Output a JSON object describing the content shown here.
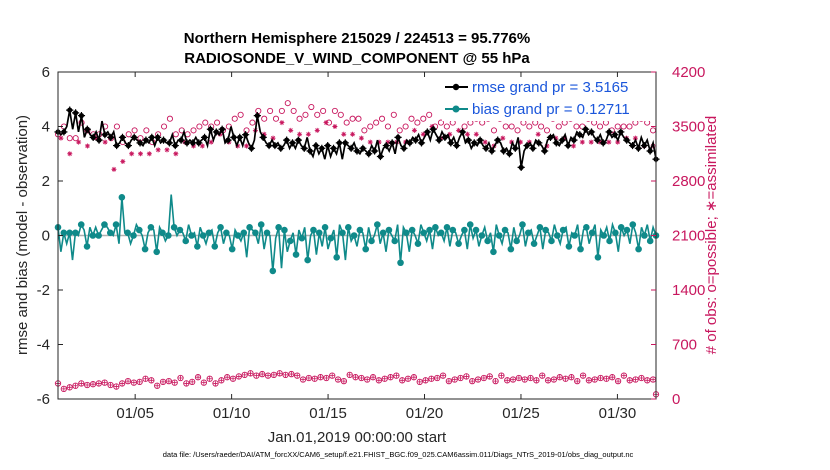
{
  "chart_data": {
    "type": "line",
    "title": "Northern Hemisphere 215029 / 224513 = 95.776%",
    "subtitle": "RADIOSONDE_V_WIND_COMPONENT @ 55 hPa",
    "xlabel": "Jan.01,2019 00:00:00 start",
    "ylabel": "rmse and bias (model - observation)",
    "ylabel_right": "# of obs: o=possible; ∗=assimilated",
    "footnote": "data file: /Users/raeder/DAI/ATM_forcXX/CAM6_setup/f.e21.FHIST_BGC.f09_025.CAM6assim.011/Diags_NTrS_2019-01/obs_diag_output.nc",
    "xlim": [
      1,
      32
    ],
    "ylim": [
      -6,
      6
    ],
    "ylim_right": [
      0,
      4200
    ],
    "x_ticks": [
      5,
      10,
      15,
      20,
      25,
      30
    ],
    "x_tick_labels": [
      "01/05",
      "01/10",
      "01/15",
      "01/20",
      "01/25",
      "01/30"
    ],
    "y_ticks": [
      -6,
      -4,
      -2,
      0,
      2,
      4,
      6
    ],
    "y_tick_labels": [
      "-6",
      "-4",
      "-2",
      "0",
      "2",
      "4",
      "6"
    ],
    "y_ticks_right": [
      0,
      700,
      1400,
      2100,
      2800,
      3500,
      4200
    ],
    "y_tick_labels_right": [
      "0",
      "700",
      "1400",
      "2100",
      "2800",
      "3500",
      "4200"
    ],
    "colors": {
      "rmse": "#000000",
      "bias": "#0f8a8a",
      "obs": "#c8175e",
      "legend_text": "#1a56db",
      "zero_line": "#b0b0b0"
    },
    "legend": [
      {
        "name": "rmse",
        "label": "rmse grand pr = 3.5165"
      },
      {
        "name": "bias",
        "label": "bias grand pr = 0.12711"
      }
    ],
    "series": [
      {
        "name": "rmse",
        "axis": "left",
        "values": [
          3.8,
          3.7,
          3.8,
          4.0,
          4.6,
          3.9,
          4.5,
          3.8,
          4.4,
          3.6,
          3.9,
          3.7,
          3.6,
          3.8,
          3.5,
          4.2,
          3.7,
          3.8,
          3.6,
          3.8,
          3.3,
          3.4,
          3.6,
          3.4,
          3.3,
          3.5,
          3.6,
          3.5,
          3.4,
          3.3,
          3.5,
          3.4,
          3.6,
          3.3,
          3.6,
          3.4,
          3.5,
          3.4,
          3.4,
          3.7,
          3.3,
          3.5,
          3.5,
          3.8,
          3.4,
          3.5,
          3.4,
          3.6,
          3.4,
          3.5,
          3.6,
          3.3,
          3.9,
          3.5,
          3.8,
          3.7,
          3.9,
          3.4,
          3.5,
          4.0,
          3.6,
          3.3,
          3.6,
          3.3,
          3.7,
          3.4,
          3.2,
          3.5,
          4.4,
          3.8,
          3.6,
          3.4,
          3.3,
          3.5,
          3.3,
          3.4,
          3.2,
          3.3,
          3.5,
          3.2,
          3.4,
          3.2,
          3.5,
          3.3,
          3.2,
          3.6,
          3.1,
          2.9,
          3.3,
          3.0,
          3.2,
          2.8,
          3.3,
          2.9,
          3.2,
          3.0,
          3.4,
          2.8,
          3.4,
          3.3,
          3.2,
          3.4,
          3.1,
          3.0,
          3.2,
          3.1,
          3.0,
          3.3,
          3.1,
          3.5,
          2.9,
          3.2,
          3.3,
          3.1,
          3.4,
          3.0,
          3.6,
          3.3,
          3.2,
          3.5,
          3.4,
          3.6,
          3.5,
          3.7,
          3.4,
          3.6,
          3.8,
          3.5,
          3.9,
          3.7,
          3.5,
          3.8,
          3.6,
          3.7,
          3.4,
          3.6,
          3.3,
          3.6,
          3.8,
          3.4,
          3.5,
          3.2,
          3.4,
          3.3,
          3.5,
          3.3,
          3.2,
          3.4,
          3.1,
          3.3,
          3.5,
          3.4,
          3.1,
          3.2,
          3.0,
          3.4,
          3.2,
          3.6,
          2.5,
          3.1,
          3.3,
          3.4,
          3.2,
          3.5,
          3.4,
          3.3,
          3.1,
          3.5,
          3.6,
          3.7,
          3.4,
          3.3,
          3.5,
          3.7,
          3.3,
          3.6,
          3.5,
          3.8,
          3.7,
          3.6,
          3.9,
          3.7,
          3.8,
          3.6,
          3.5,
          3.7,
          3.4,
          3.5,
          3.8,
          3.6,
          3.7,
          3.5,
          3.8,
          3.6,
          3.5,
          3.4,
          3.3,
          3.5,
          3.2,
          3.6,
          3.3,
          3.5,
          3.1,
          3.4,
          2.8
        ]
      },
      {
        "name": "bias",
        "axis": "left",
        "values": [
          0.3,
          -0.6,
          0.1,
          -0.3,
          0.1,
          -0.9,
          0.1,
          0.0,
          0.4,
          0.2,
          -0.4,
          0.3,
          0.0,
          0.3,
          0.0,
          0.2,
          0.4,
          0.3,
          0.1,
          0.0,
          0.4,
          -0.3,
          1.4,
          0.1,
          0.1,
          -0.3,
          0.0,
          0.4,
          0.2,
          0.0,
          -0.5,
          0.1,
          0.3,
          0.2,
          -0.6,
          0.3,
          0.1,
          -0.2,
          0.0,
          1.5,
          0.3,
          0.0,
          0.2,
          0.1,
          -0.2,
          0.4,
          0.0,
          0.1,
          -0.4,
          0.3,
          0.0,
          -0.3,
          0.1,
          0.2,
          -0.4,
          0.1,
          0.3,
          -0.3,
          0.1,
          0.0,
          -0.5,
          0.2,
          0.0,
          -0.2,
          0.1,
          -0.8,
          0.3,
          0.2,
          0.1,
          -0.3,
          0.4,
          -0.5,
          0.1,
          0.0,
          -1.3,
          -0.1,
          0.3,
          -1.2,
          0.2,
          -0.6,
          -0.2,
          0.1,
          -0.7,
          0.2,
          -0.1,
          0.3,
          -0.9,
          0.0,
          0.2,
          -0.7,
          0.1,
          -0.4,
          0.3,
          -0.5,
          -0.1,
          0.2,
          -0.8,
          0.4,
          0.1,
          -0.9,
          0.3,
          -0.2,
          0.0,
          -0.4,
          0.2,
          0.1,
          -0.5,
          0.3,
          -0.2,
          0.0,
          0.4,
          -0.3,
          0.1,
          -0.6,
          0.2,
          0.0,
          -0.2,
          0.4,
          -1.0,
          0.3,
          0.1,
          -0.6,
          0.2,
          0.0,
          -0.3,
          0.4,
          0.1,
          -0.2,
          0.2,
          -0.5,
          0.3,
          0.0,
          0.1,
          -0.2,
          0.3,
          -0.4,
          0.2,
          0.1,
          -0.3,
          0.0,
          0.2,
          -0.5,
          0.4,
          -0.1,
          0.2,
          -0.4,
          0.0,
          0.3,
          -0.2,
          0.1,
          -0.6,
          0.4,
          0.0,
          -0.3,
          0.2,
          0.1,
          -0.5,
          0.3,
          -0.2,
          0.0,
          0.4,
          -0.4,
          0.1,
          0.2,
          -0.3,
          0.0,
          0.3,
          -0.5,
          0.2,
          0.1,
          -0.2,
          0.4,
          0.0,
          -0.3,
          0.2,
          0.3,
          -0.4,
          0.1,
          0.0,
          0.4,
          -0.5,
          0.2,
          0.3,
          -0.3,
          0.1,
          0.4,
          -0.8,
          0.2,
          0.0,
          0.3,
          -0.2,
          0.4,
          0.1,
          -0.6,
          0.3,
          0.0,
          0.2,
          -0.3,
          0.4,
          0.1,
          -0.5,
          0.3,
          0.0,
          0.4,
          -0.2,
          0.3,
          0.0
        ]
      },
      {
        "name": "obs_possible",
        "axis": "right",
        "values": [
          3400,
          3550,
          3500,
          3550,
          3350,
          3500,
          3350,
          3500,
          3550,
          3500,
          3450,
          3500,
          3400,
          3600,
          3400,
          3350,
          3500,
          3300,
          3350,
          3250,
          3500,
          3250,
          3300,
          3200,
          3400,
          3300,
          3450,
          3250,
          3350,
          3300,
          3450,
          3400,
          3300,
          3550,
          3400,
          3350,
          3500,
          3450,
          3600,
          3450,
          3400,
          3500,
          3450,
          3500,
          3400,
          3550,
          3450,
          3400,
          3500,
          3450,
          3550,
          3400,
          3500,
          3450,
          3550,
          3600,
          3450,
          3700,
          3500,
          3550,
          3600,
          3450,
          3650,
          3500,
          3450,
          3600,
          3550,
          3650,
          3700,
          3750,
          3600,
          3650,
          3700,
          3550,
          3600,
          3650,
          3700,
          3600,
          3800,
          3650,
          3700,
          3750,
          3600,
          3700,
          3650,
          3600,
          3750,
          3700,
          3650,
          3600,
          3700,
          3750,
          3550,
          3650,
          3700,
          3500,
          3650,
          3600,
          3550,
          3700,
          3600,
          3500,
          3600,
          3550,
          3450,
          3600,
          3500,
          3450,
          3550,
          3500,
          3600,
          3450,
          3500,
          3550,
          3650,
          3500,
          3450,
          3600,
          3500,
          3550,
          3600,
          3650,
          3550,
          3500,
          3600,
          3550,
          3650,
          3700,
          3500,
          3600,
          3550,
          3650,
          3500,
          3600,
          3550,
          3500,
          3650,
          3600,
          3500,
          3600,
          3550,
          3500,
          3600,
          3450,
          3550,
          3500,
          3600,
          3550,
          3450,
          3500,
          3600,
          3550,
          3500,
          3450,
          3500,
          3600,
          3450,
          3500,
          3550,
          3600,
          3500,
          3450,
          3550,
          3600,
          3500,
          3550,
          3450,
          3500,
          3600,
          3550,
          3500,
          3450,
          3550,
          3500,
          3600,
          3450,
          3500,
          3550,
          3500,
          3450,
          3600,
          3500,
          3550,
          3450,
          3500,
          3600,
          3550,
          3500,
          3450,
          3550,
          3500,
          3600,
          3500,
          3550,
          3500,
          3450,
          3550,
          3500,
          3600,
          3450,
          3550,
          3500,
          3450,
          3500
        ],
        "assimilated": [
          3300,
          3350,
          3400,
          3300,
          3150,
          3350,
          3100,
          3300,
          3450,
          3300,
          3250,
          3350,
          3200,
          3350,
          3200,
          3100,
          3300,
          3000,
          3050,
          2950,
          3200,
          2950,
          3050,
          3150,
          3050,
          3150,
          3250,
          3050,
          3150,
          3100,
          3250,
          3150,
          3050,
          3300,
          3200,
          3100,
          3250,
          3200,
          3350,
          3250,
          3150,
          3300,
          3250,
          3300,
          3200,
          3350,
          3250,
          3200,
          3300,
          3250,
          3350,
          3200,
          3300,
          3250,
          3350,
          3400,
          3250,
          3450,
          3300,
          3350,
          3400,
          3250,
          3450,
          3300,
          3250,
          3400,
          3350,
          3450,
          3500,
          3550,
          3400,
          3450,
          3500,
          3350,
          3400,
          3450,
          3550,
          3400,
          3600,
          3450,
          3500,
          3550,
          3400,
          3500,
          3450,
          3400,
          3550,
          3500,
          3450,
          3400,
          3500,
          3550,
          3350,
          3450,
          3500,
          3300,
          3450,
          3400,
          3350,
          3500,
          3400,
          3300,
          3400,
          3350,
          3250,
          3400,
          3300,
          3250,
          3350,
          3300,
          3400,
          3250,
          3300,
          3350,
          3450,
          3300,
          3250,
          3400,
          3300,
          3350,
          3400,
          3450,
          3350,
          3300,
          3400,
          3350,
          3450,
          3500,
          3300,
          3400,
          3350,
          3450,
          3300,
          3400,
          3350,
          3300,
          3450,
          3400,
          3300,
          3400,
          3350,
          3300,
          3400,
          3250,
          3350,
          3300,
          3400,
          3350,
          3250,
          3300,
          3400,
          3350,
          3300,
          3250,
          3300,
          3400,
          3250,
          3300,
          3350,
          3400,
          3300,
          3250,
          3350,
          3400,
          3300,
          3350,
          3250,
          3300,
          3400,
          3350,
          3300,
          3250,
          3350,
          3300,
          3400,
          3250,
          3300,
          3350,
          3300,
          3250,
          3400,
          3300,
          3350,
          3250,
          3300,
          3400,
          3350,
          3300,
          3250,
          3350,
          3300,
          3400,
          3300,
          3350,
          3300,
          3250,
          3350,
          3300,
          3400,
          3250,
          3350,
          3300,
          3250,
          3300
        ]
      },
      {
        "name": "obs_low",
        "axis": "right",
        "values": [
          200,
          150,
          130,
          180,
          150,
          210,
          170,
          140,
          200,
          160,
          180,
          230,
          190,
          160,
          200,
          150,
          210,
          240,
          180,
          220,
          160,
          250,
          200,
          170,
          230,
          190,
          210,
          170,
          220,
          180,
          260,
          190,
          240,
          200,
          170,
          260,
          220,
          190,
          230,
          250,
          210,
          180,
          270,
          230,
          200,
          250,
          220,
          190,
          280,
          240,
          210,
          180,
          260,
          230,
          200,
          270,
          240,
          210,
          280,
          300,
          260,
          230,
          290,
          270,
          310,
          250,
          330,
          280,
          300,
          270,
          320,
          260,
          300,
          340,
          310,
          290,
          330,
          270,
          310,
          290,
          320,
          260,
          300,
          280,
          250,
          290,
          270,
          300,
          260,
          240,
          280,
          310,
          270,
          240,
          300,
          270,
          250,
          290,
          230,
          270,
          310,
          260,
          280,
          240,
          270,
          300,
          250,
          230,
          280,
          260,
          240,
          290,
          260,
          230,
          280,
          250,
          300,
          270,
          240,
          290,
          260,
          230,
          280,
          250,
          220,
          270,
          240,
          290,
          260,
          230,
          270,
          250,
          300,
          260,
          230,
          280,
          250,
          220,
          270,
          240,
          290,
          260,
          230,
          280,
          250,
          300,
          270,
          240,
          290,
          260,
          230,
          280,
          300,
          260,
          240,
          280,
          250,
          230,
          270,
          290,
          250,
          230,
          270,
          260,
          240,
          280,
          300,
          260,
          240,
          270,
          250,
          230,
          280,
          300,
          260,
          240,
          280,
          250,
          230,
          270,
          300,
          260,
          240,
          280,
          250,
          230,
          270,
          290,
          260,
          240,
          280,
          250,
          230,
          270,
          300,
          260,
          240,
          280,
          250,
          230,
          270,
          250,
          240,
          280,
          250,
          60
        ]
      }
    ]
  }
}
